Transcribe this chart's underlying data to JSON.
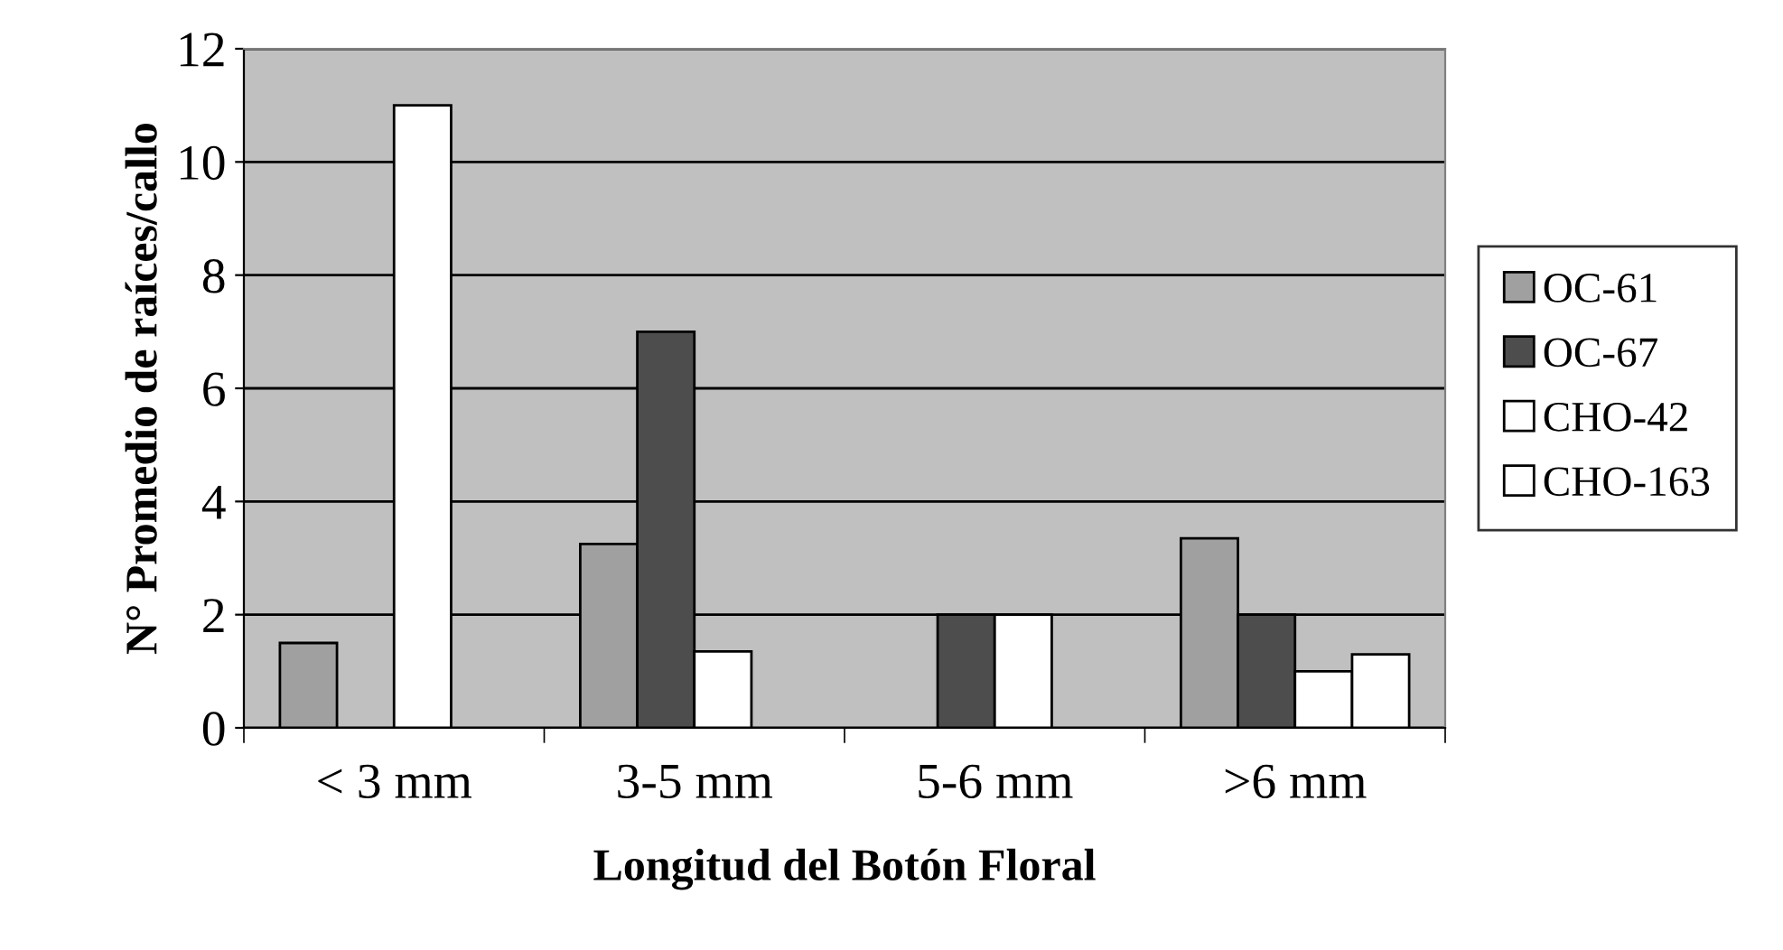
{
  "chart_data": {
    "type": "bar",
    "xlabel": "Longitud del Botón Floral",
    "ylabel": "N° Promedio de raíces/callo",
    "categories": [
      "< 3 mm",
      "3-5 mm",
      "5-6 mm",
      ">6 mm"
    ],
    "series": [
      {
        "name": "OC-61",
        "color": "#a0a0a0",
        "values": [
          1.5,
          3.25,
          null,
          3.35
        ]
      },
      {
        "name": "OC-67",
        "color": "#4d4d4d",
        "values": [
          null,
          7,
          2,
          2
        ]
      },
      {
        "name": "CHO-42",
        "color": "#ffffff",
        "values": [
          11,
          1.35,
          2,
          1
        ]
      },
      {
        "name": "CHO-163",
        "color": "#ffffff",
        "values": [
          null,
          null,
          null,
          1.3
        ]
      }
    ],
    "ylim": [
      0,
      12
    ],
    "yticks": [
      0,
      2,
      4,
      6,
      8,
      10,
      12
    ],
    "grid": "y",
    "legend": "right"
  }
}
